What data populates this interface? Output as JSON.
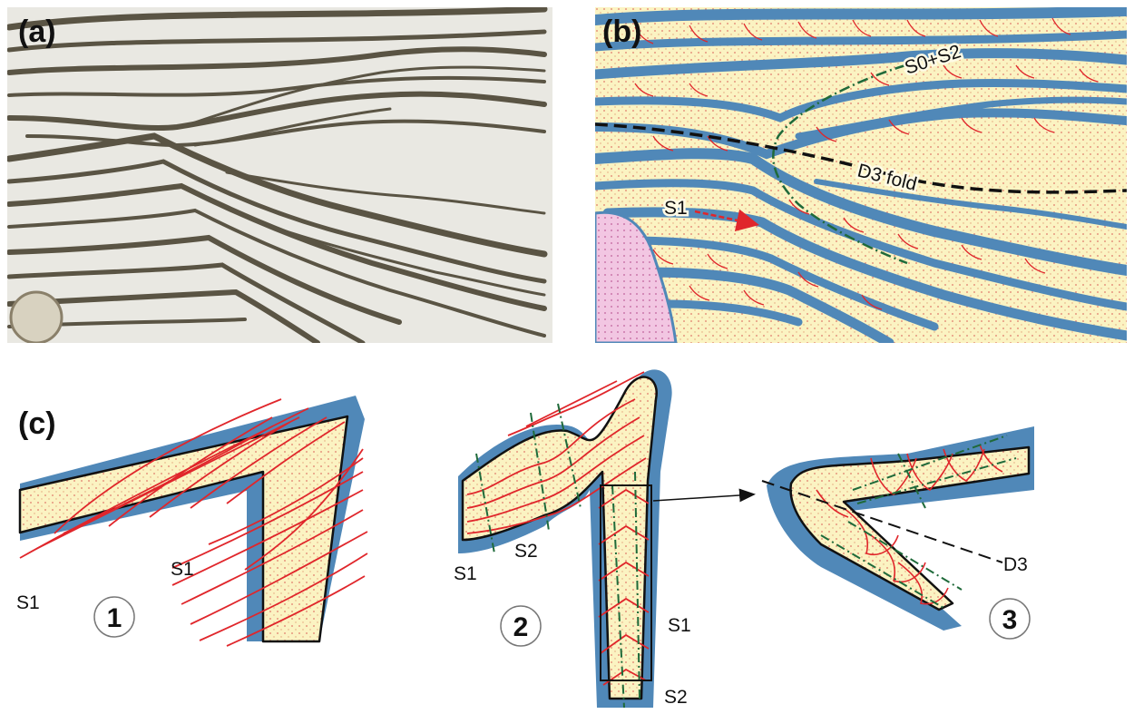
{
  "panels": {
    "a": {
      "letter": "(a)"
    },
    "b": {
      "letter": "(b)",
      "label_s0s2": "S0+S2",
      "label_d3": "D3 fold",
      "label_s1": "S1"
    },
    "c": {
      "letter": "(c)",
      "stage1": {
        "number": "1",
        "s1_left": "S1",
        "s1_inner": "S1"
      },
      "stage2": {
        "number": "2",
        "s1_left": "S1",
        "s2_top": "S2",
        "s1_right": "S1",
        "s2_bottom": "S2"
      },
      "stage3": {
        "number": "3",
        "d3": "D3"
      }
    }
  },
  "colors": {
    "layer_fill": "#fbf3c2",
    "layer_border": "#5088b8",
    "cleavage_red": "#e0262b",
    "fold_axis_green": "#1f6a3a",
    "photo_background": "#e9e8e2",
    "photo_vein": "#5a5444",
    "inclusion_pink": "#f2c6e2"
  }
}
